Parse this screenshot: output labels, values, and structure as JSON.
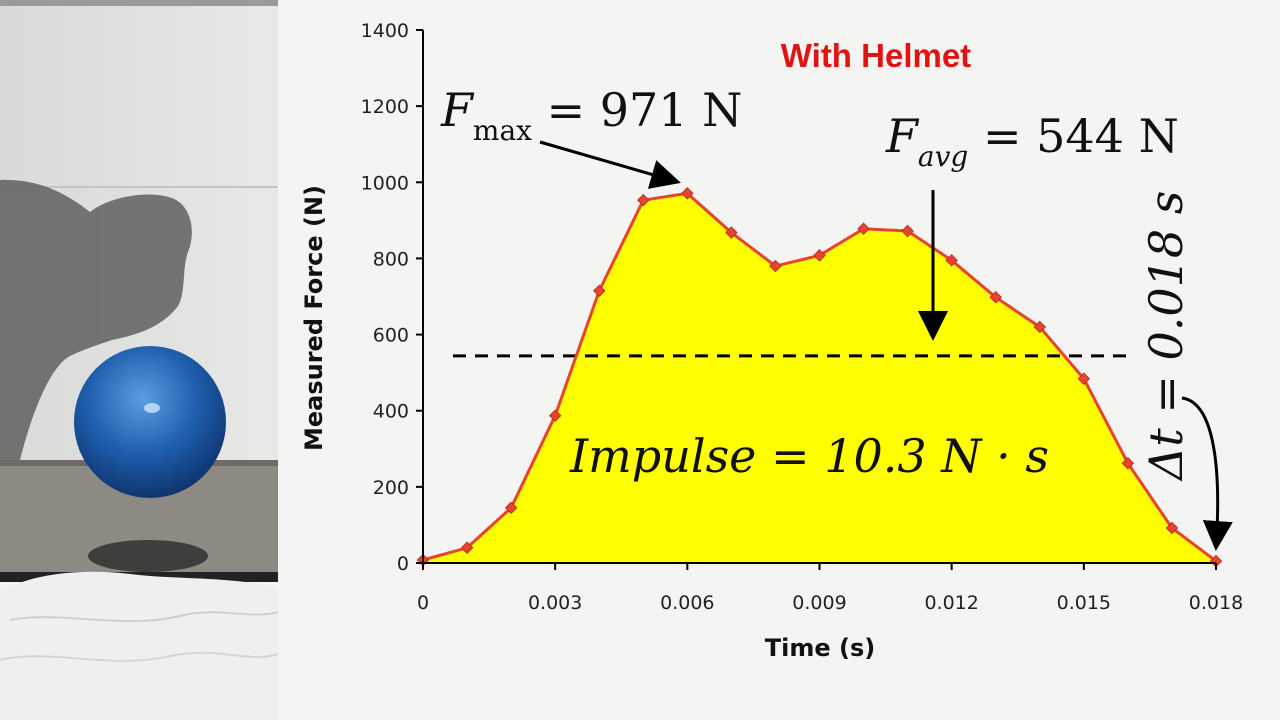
{
  "chart_data": {
    "type": "area",
    "title": "With Helmet",
    "xlabel": "Time (s)",
    "ylabel": "Measured Force (N)",
    "xlim": [
      0,
      0.018
    ],
    "ylim": [
      0,
      1400
    ],
    "xticks": [
      0,
      0.003,
      0.006,
      0.009,
      0.012,
      0.015,
      0.018
    ],
    "xtick_labels": [
      "0",
      "0.003",
      "0.006",
      "0.009",
      "0.012",
      "0.015",
      "0.018"
    ],
    "yticks": [
      0,
      200,
      400,
      600,
      800,
      1000,
      1200,
      1400
    ],
    "ytick_labels": [
      "0",
      "200",
      "400",
      "600",
      "800",
      "1000",
      "1200",
      "1400"
    ],
    "grid": false,
    "series": [
      {
        "x": [
          0,
          0.001,
          0.002,
          0.003,
          0.004,
          0.005,
          0.006,
          0.007,
          0.008,
          0.009,
          0.01,
          0.011,
          0.012,
          0.013,
          0.014,
          0.015,
          0.016,
          0.017,
          0.018
        ],
        "y": [
          8,
          40,
          145,
          387,
          715,
          953,
          971,
          868,
          780,
          808,
          878,
          872,
          795,
          698,
          620,
          484,
          262,
          92,
          5
        ],
        "line_color": "#e8432e",
        "fill_color": "#ffff00",
        "marker_color": "#e8432e"
      }
    ],
    "average_line": {
      "y": 544
    },
    "annotations": {
      "fmax": {
        "symbol": "F",
        "subscript": "max",
        "rest": " = 971 N",
        "points_to": [
          0.006,
          971
        ]
      },
      "favg": {
        "symbol": "F",
        "subscript": "avg",
        "rest": " = 544 N"
      },
      "impulse": {
        "text": "Impulse = 10.3 N · s"
      },
      "dt": {
        "text": "Δt = 0.018 s",
        "points_to": [
          0.018,
          5
        ]
      }
    },
    "colors": {
      "title": "#e01414",
      "line": "#e8432e",
      "fill": "#ffff00"
    }
  }
}
